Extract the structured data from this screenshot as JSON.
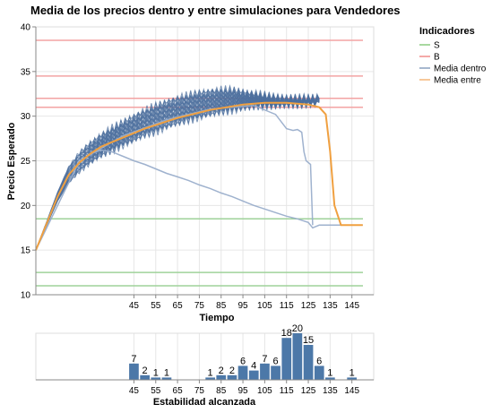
{
  "chart_data": [
    {
      "type": "line",
      "title": "Media de los precios dentro y entre simulaciones para Vendedores",
      "xlabel": "Tiempo",
      "ylabel": "Precio Esperado",
      "xlim": [
        0,
        155
      ],
      "ylim": [
        10,
        40
      ],
      "x_ticks": [
        45,
        55,
        65,
        75,
        85,
        95,
        105,
        115,
        125,
        135,
        145
      ],
      "y_ticks": [
        10,
        15,
        20,
        25,
        30,
        35,
        40
      ],
      "grid": true,
      "legend": {
        "title": "Indicadores",
        "placement": "right",
        "entries": [
          {
            "label": "S",
            "color": "#a8d8a0"
          },
          {
            "label": "B",
            "color": "#f4a9a8"
          },
          {
            "label": "Media dentro",
            "color": "#a7b8cf"
          },
          {
            "label": "Media entre",
            "color": "#f7c89a"
          }
        ]
      },
      "horizontal_lines": {
        "S": [
          18.5,
          12.5,
          11.0
        ],
        "B": [
          38.5,
          34.5,
          32.0,
          31.0
        ]
      },
      "colors": {
        "S": "#9fd29a",
        "B": "#f3a3a3",
        "media_dentro": "#4c6f9e",
        "media_dentro_faint": "#9aaecb",
        "media_entre": "#f0a040"
      },
      "series": [
        {
          "name": "Media entre",
          "x": [
            0,
            5,
            10,
            15,
            20,
            25,
            30,
            35,
            40,
            45,
            50,
            55,
            60,
            65,
            70,
            75,
            80,
            85,
            90,
            95,
            100,
            105,
            110,
            115,
            120,
            125,
            130,
            133,
            135,
            137,
            140,
            150
          ],
          "y": [
            15.0,
            18.0,
            21.0,
            23.4,
            24.8,
            25.8,
            26.6,
            27.1,
            27.6,
            28.1,
            28.6,
            29.0,
            29.4,
            29.8,
            30.1,
            30.4,
            30.7,
            30.9,
            31.1,
            31.3,
            31.4,
            31.5,
            31.5,
            31.5,
            31.4,
            31.3,
            31.0,
            30.2,
            26.0,
            20.0,
            17.8,
            17.8
          ]
        },
        {
          "name": "Media dentro (superior)",
          "x": [
            0,
            5,
            10,
            15,
            20,
            25,
            30,
            35,
            40,
            45,
            50,
            55,
            60,
            65,
            70,
            75,
            80,
            85,
            90,
            95,
            100,
            105,
            110,
            115,
            120,
            125,
            130
          ],
          "y": [
            15.0,
            18.2,
            21.5,
            24.3,
            25.9,
            27.0,
            27.9,
            28.6,
            29.3,
            30.0,
            30.6,
            31.1,
            31.6,
            32.0,
            32.3,
            32.6,
            32.8,
            32.9,
            32.9,
            32.7,
            32.5,
            32.3,
            32.1,
            32.0,
            32.0,
            32.0,
            32.0
          ]
        },
        {
          "name": "Media dentro (inferior)",
          "x": [
            0,
            5,
            10,
            15,
            20,
            25,
            30,
            35,
            40,
            45,
            50,
            55,
            60,
            65,
            70,
            75,
            80,
            85,
            90,
            95,
            100,
            105,
            110,
            115,
            120,
            125,
            130
          ],
          "y": [
            15.0,
            17.8,
            20.5,
            22.5,
            23.8,
            24.8,
            25.6,
            26.2,
            26.8,
            27.3,
            27.9,
            28.3,
            28.8,
            29.2,
            29.6,
            29.9,
            30.2,
            30.5,
            30.7,
            30.9,
            31.1,
            31.2,
            31.2,
            31.3,
            31.3,
            31.4,
            31.5
          ]
        },
        {
          "name": "Media dentro (descendente)",
          "x": [
            0,
            5,
            10,
            15,
            20,
            25,
            30,
            35,
            40,
            45,
            50,
            55,
            60,
            65,
            70,
            75,
            80,
            85,
            90,
            95,
            100,
            105,
            110,
            115,
            120,
            125,
            127,
            130,
            135,
            150
          ],
          "y": [
            15.0,
            18.0,
            21.0,
            23.4,
            24.8,
            25.8,
            26.2,
            26.0,
            25.5,
            25.0,
            24.6,
            24.1,
            23.6,
            23.2,
            22.8,
            22.3,
            21.9,
            21.4,
            21.0,
            20.5,
            20.0,
            19.6,
            19.2,
            18.8,
            18.5,
            18.1,
            17.5,
            17.8,
            17.8,
            17.8
          ]
        },
        {
          "name": "Media dentro (caída)",
          "x": [
            0,
            20,
            40,
            60,
            80,
            100,
            110,
            115,
            118,
            120,
            122,
            123,
            124,
            126,
            127
          ],
          "y": [
            15.0,
            25.0,
            27.8,
            29.6,
            30.8,
            31.2,
            30.2,
            28.6,
            28.4,
            28.5,
            28.2,
            26.0,
            25.0,
            24.6,
            17.8
          ]
        }
      ]
    },
    {
      "type": "bar",
      "xlabel": "Estabilidad alcanzada",
      "x_ticks": [
        45,
        55,
        65,
        75,
        85,
        95,
        105,
        115,
        125,
        135,
        145
      ],
      "categories": [
        45,
        50,
        55,
        60,
        80,
        85,
        90,
        95,
        100,
        105,
        110,
        115,
        120,
        125,
        130,
        135,
        145
      ],
      "values": [
        7,
        2,
        1,
        1,
        1,
        2,
        2,
        6,
        4,
        7,
        6,
        18,
        20,
        15,
        6,
        1,
        1
      ],
      "ylim": [
        0,
        20
      ],
      "color": "#4c78a8"
    }
  ]
}
